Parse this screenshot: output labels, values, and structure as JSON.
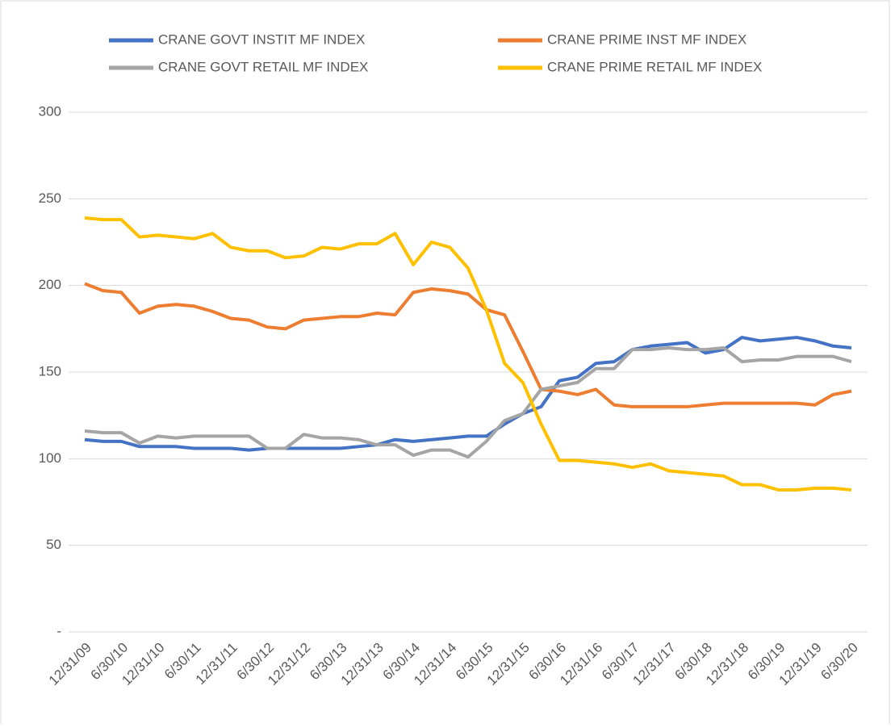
{
  "chart_data": {
    "type": "line",
    "categories": [
      "12/31/09",
      null,
      "6/30/10",
      null,
      "12/31/10",
      null,
      "6/30/11",
      null,
      "12/31/11",
      null,
      "6/30/12",
      null,
      "12/31/12",
      null,
      "6/30/13",
      null,
      "12/31/13",
      null,
      "6/30/14",
      null,
      "12/31/14",
      null,
      "6/30/15",
      null,
      "12/31/15",
      null,
      "6/30/16",
      null,
      "12/31/16",
      null,
      "6/30/17",
      null,
      "12/31/17",
      null,
      "6/30/18",
      null,
      "12/31/18",
      null,
      "6/30/19",
      null,
      "12/31/19",
      null,
      "6/30/20"
    ],
    "series": [
      {
        "name": "CRANE GOVT INSTIT MF INDEX",
        "color": "#4472c4",
        "values": [
          111,
          110,
          110,
          107,
          107,
          107,
          106,
          106,
          106,
          105,
          106,
          106,
          106,
          106,
          106,
          107,
          108,
          111,
          110,
          111,
          112,
          113,
          113,
          120,
          126,
          130,
          145,
          147,
          155,
          156,
          163,
          165,
          166,
          167,
          161,
          163,
          170,
          168,
          169,
          170,
          168,
          165,
          164
        ]
      },
      {
        "name": "CRANE PRIME INST MF INDEX",
        "color": "#ed7d31",
        "values": [
          201,
          197,
          196,
          184,
          188,
          189,
          188,
          185,
          181,
          180,
          176,
          175,
          180,
          181,
          182,
          182,
          184,
          183,
          196,
          198,
          197,
          195,
          186,
          183,
          162,
          140,
          139,
          137,
          140,
          131,
          130,
          130,
          130,
          130,
          131,
          132,
          132,
          132,
          132,
          132,
          131,
          137,
          139
        ]
      },
      {
        "name": "CRANE GOVT RETAIL MF INDEX",
        "color": "#a5a5a5",
        "values": [
          116,
          115,
          115,
          109,
          113,
          112,
          113,
          113,
          113,
          113,
          106,
          106,
          114,
          112,
          112,
          111,
          108,
          108,
          102,
          105,
          105,
          101,
          110,
          122,
          126,
          140,
          142,
          144,
          152,
          152,
          163,
          163,
          164,
          163,
          163,
          164,
          156,
          157,
          157,
          159,
          159,
          159,
          156
        ]
      },
      {
        "name": "CRANE PRIME RETAIL MF INDEX",
        "color": "#ffc000",
        "values": [
          239,
          238,
          238,
          228,
          229,
          228,
          227,
          230,
          222,
          220,
          220,
          216,
          217,
          222,
          221,
          224,
          224,
          230,
          212,
          225,
          222,
          210,
          186,
          155,
          144,
          120,
          99,
          99,
          98,
          97,
          95,
          97,
          93,
          92,
          91,
          90,
          85,
          85,
          82,
          82,
          83,
          83,
          82
        ]
      }
    ],
    "ylim": [
      0,
      300
    ],
    "yticks": [
      {
        "value": 0,
        "label": "-"
      },
      50,
      100,
      150,
      200,
      250,
      300
    ],
    "grid": true,
    "legend": "top"
  }
}
